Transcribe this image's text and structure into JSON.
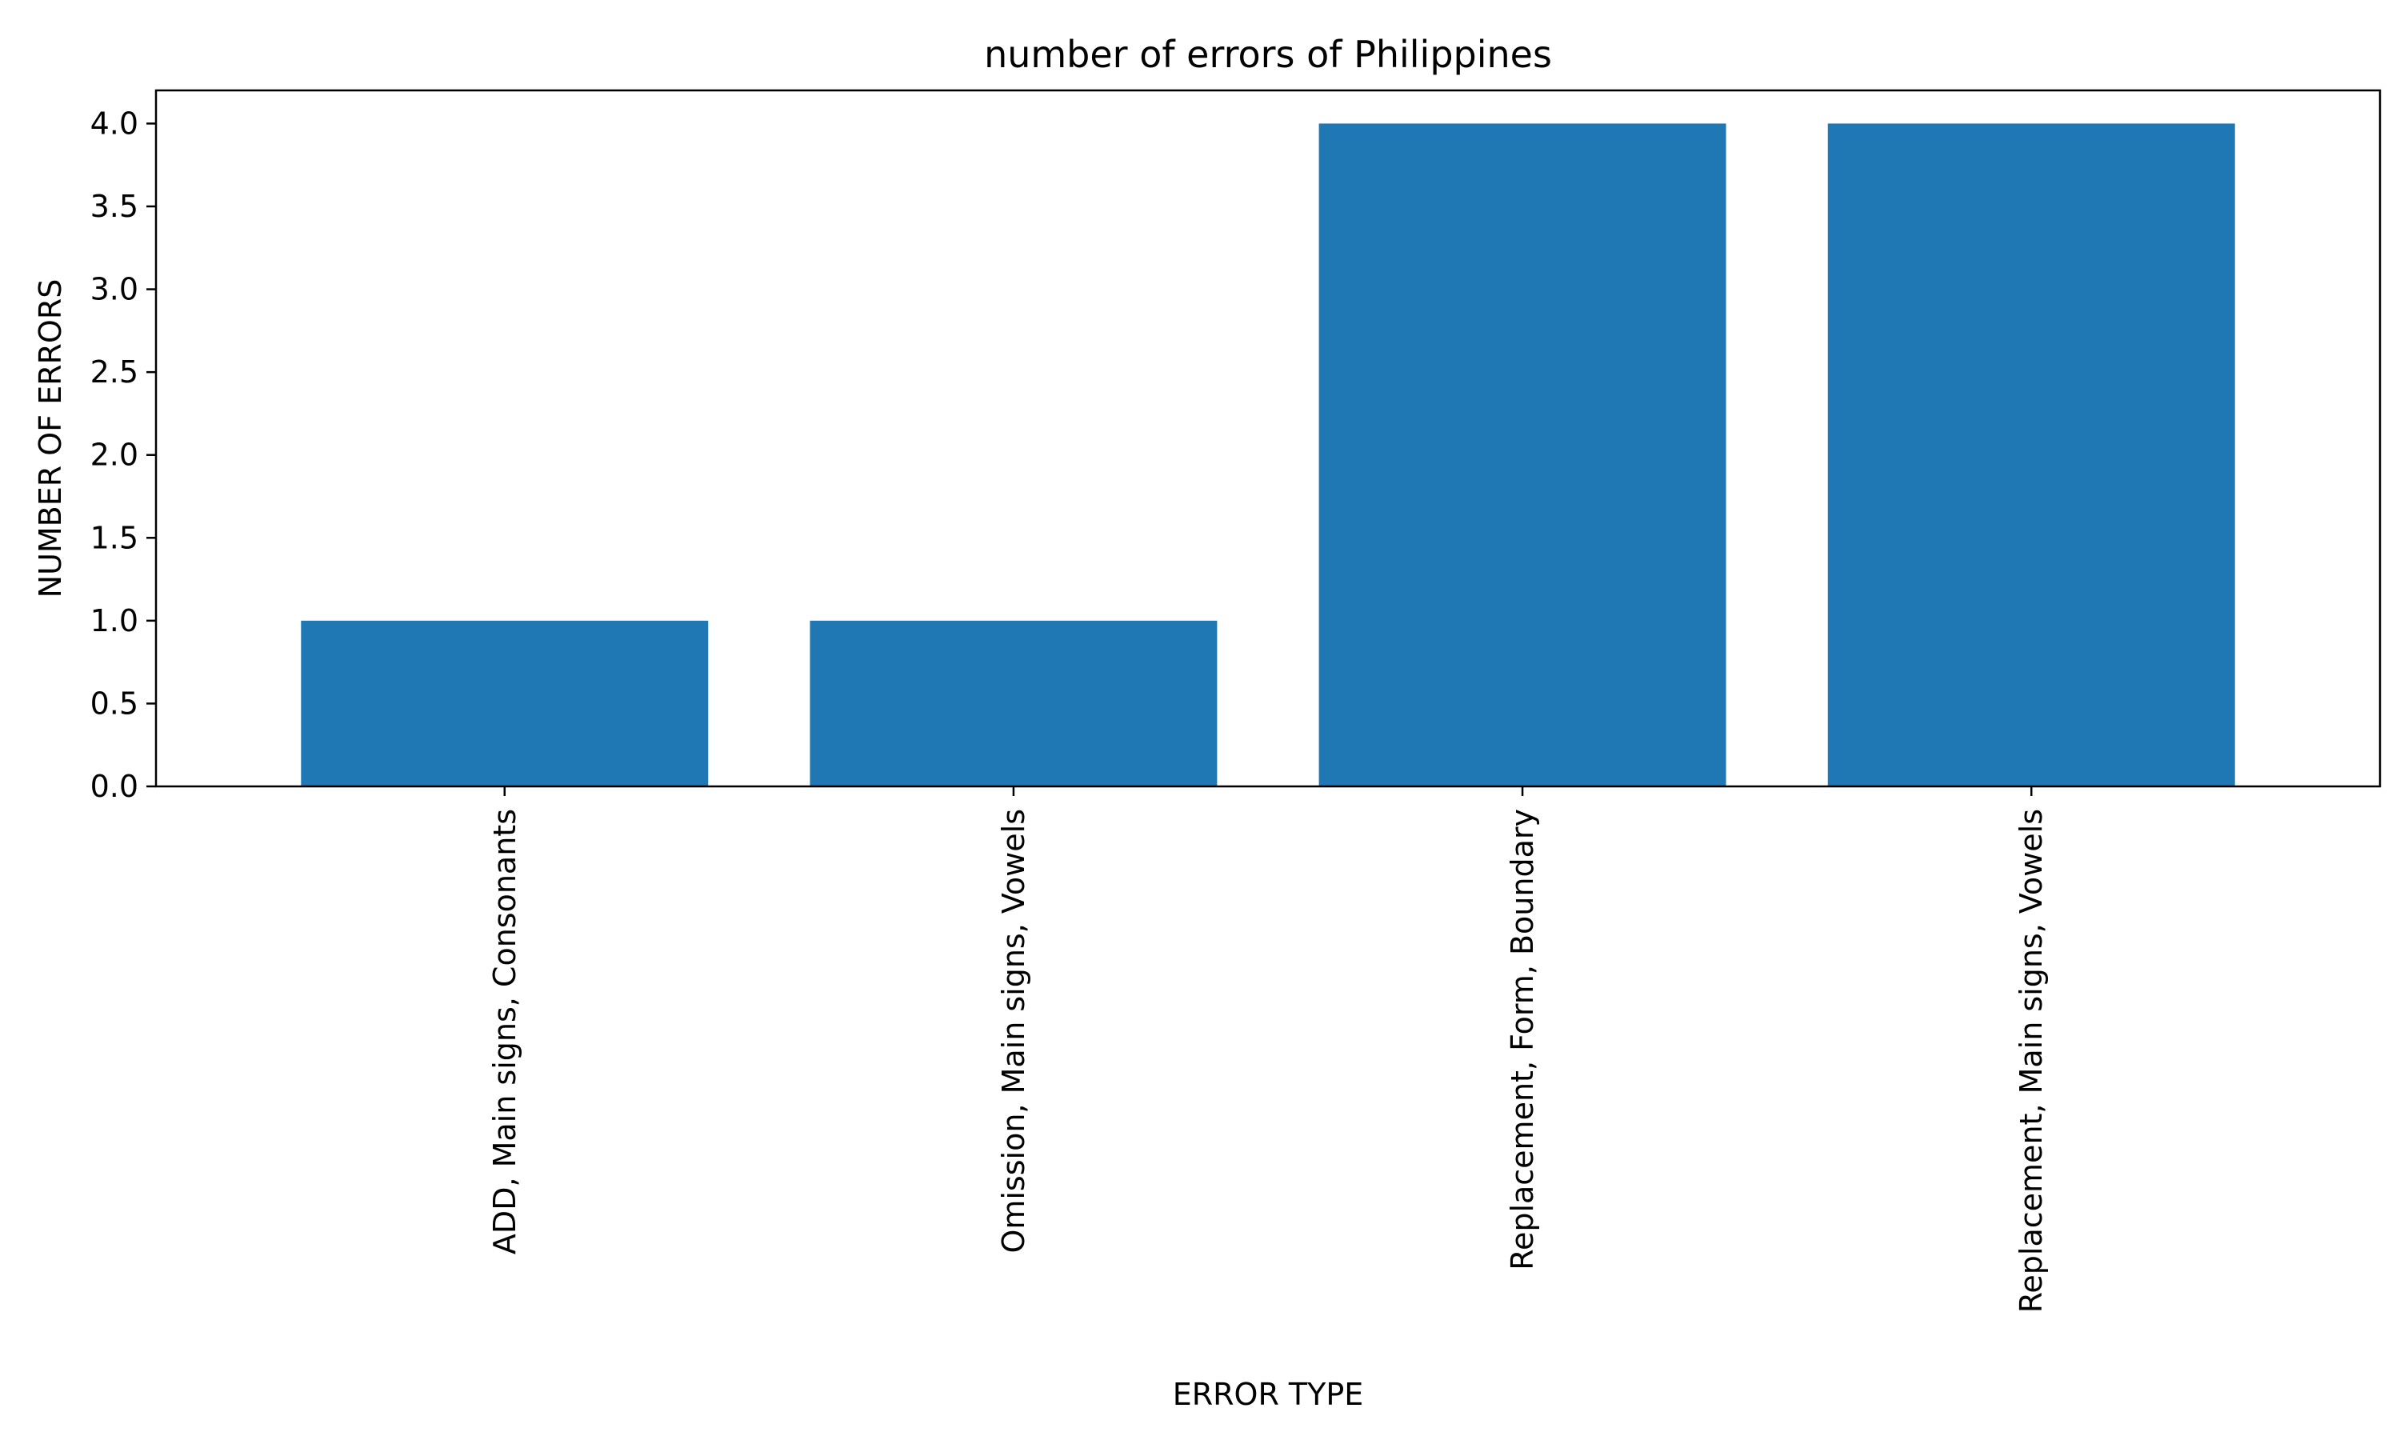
{
  "chart_data": {
    "type": "bar",
    "title": "number of errors of Philippines",
    "xlabel": "ERROR TYPE",
    "ylabel": "NUMBER OF ERRORS",
    "categories": [
      "ADD, Main signs, Consonants",
      "Omission, Main signs, Vowels",
      "Replacement, Form, Boundary",
      "Replacement, Main signs, Vowels"
    ],
    "values": [
      1,
      1,
      4,
      4
    ],
    "ylim": [
      0,
      4.2
    ],
    "yticks": [
      0.0,
      0.5,
      1.0,
      1.5,
      2.0,
      2.5,
      3.0,
      3.5,
      4.0
    ],
    "ytick_labels": [
      "0.0",
      "0.5",
      "1.0",
      "1.5",
      "2.0",
      "2.5",
      "3.0",
      "3.5",
      "4.0"
    ],
    "bar_color": "#1f77b4",
    "grid": false,
    "legend": "none"
  }
}
